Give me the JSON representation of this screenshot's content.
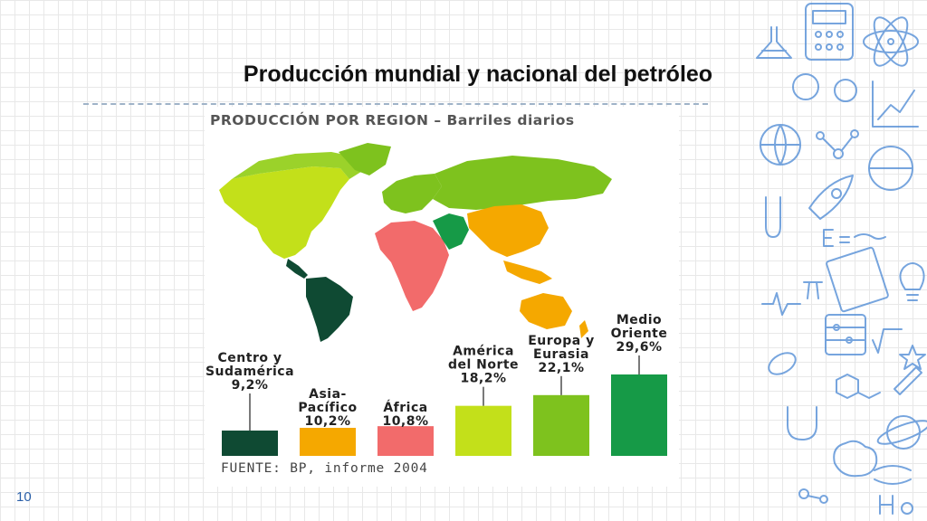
{
  "slide": {
    "title": "Producción mundial y nacional del petróleo",
    "page_number": "10"
  },
  "figure": {
    "header": "PRODUCCIÓN POR REGION – Barriles diarios",
    "source": "FUENTE: BP, informe 2004"
  },
  "chart_data": {
    "type": "bar",
    "title": "PRODUCCIÓN POR REGION – Barriles diarios",
    "unit": "%",
    "categories": [
      {
        "label_lines": [
          "Centro y",
          "Sudamérica"
        ],
        "value_label": "9,2%",
        "value": 9.2,
        "color": "#0f4a33"
      },
      {
        "label_lines": [
          "Asia-",
          "Pacífico"
        ],
        "value_label": "10,2%",
        "value": 10.2,
        "color": "#f5a800"
      },
      {
        "label_lines": [
          "África"
        ],
        "value_label": "10,8%",
        "value": 10.8,
        "color": "#f26b6b"
      },
      {
        "label_lines": [
          "América",
          "del Norte"
        ],
        "value_label": "18,2%",
        "value": 18.2,
        "color": "#c3e01a"
      },
      {
        "label_lines": [
          "Europa y",
          "Eurasia"
        ],
        "value_label": "22,1%",
        "value": 22.1,
        "color": "#7ec21e"
      },
      {
        "label_lines": [
          "Medio",
          "Oriente"
        ],
        "value_label": "29,6%",
        "value": 29.6,
        "color": "#169a47"
      }
    ],
    "source": "FUENTE: BP, informe 2004"
  },
  "doodles": [
    "calculator-icon",
    "flask-icon",
    "atom-icon",
    "bacteria-icon",
    "graph-icon",
    "globe-icon",
    "molecule-icon",
    "rocket-icon",
    "formula-e-mc2-icon",
    "pi-icon",
    "lightbulb-icon",
    "abacus-icon",
    "sqrt2-icon",
    "magnet-icon",
    "brain-icon",
    "dna-icon",
    "h2o-icon",
    "planet-icon",
    "book-icon"
  ]
}
